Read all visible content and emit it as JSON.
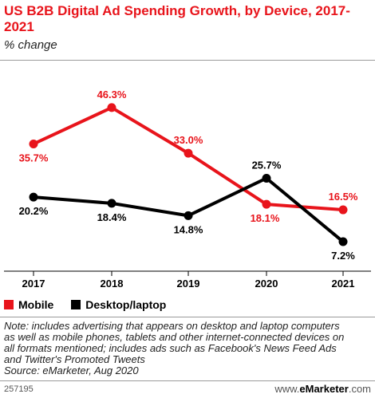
{
  "header": {
    "title": "US B2B Digital Ad Spending Growth, by Device, 2017-2021",
    "subtitle": "% change"
  },
  "chart_data": {
    "type": "line",
    "x": [
      "2017",
      "2018",
      "2019",
      "2020",
      "2021"
    ],
    "ylim": [
      0,
      50
    ],
    "grid": false,
    "legend_position": "bottom-left",
    "series": [
      {
        "name": "Mobile",
        "color": "#e8141b",
        "values": [
          35.7,
          46.3,
          33.0,
          18.1,
          16.5
        ],
        "labels": [
          "35.7%",
          "46.3%",
          "33.0%",
          "18.1%",
          "16.5%"
        ]
      },
      {
        "name": "Desktop/laptop",
        "color": "#000000",
        "values": [
          20.2,
          18.4,
          14.8,
          25.7,
          7.2
        ],
        "labels": [
          "20.2%",
          "18.4%",
          "14.8%",
          "25.7%",
          "7.2%"
        ]
      }
    ]
  },
  "legend": {
    "mobile": "Mobile",
    "desktop": "Desktop/laptop"
  },
  "notes": {
    "line1": "Note: includes advertising that appears on desktop and laptop computers",
    "line2": "as well as mobile phones, tablets and other internet-connected devices on",
    "line3": "all formats mentioned; includes ads such as Facebook's News Feed Ads",
    "line4": "and Twitter's Promoted Tweets",
    "source": "Source: eMarketer, Aug 2020"
  },
  "footer": {
    "chart_id": "257195",
    "brand_prefix": "www.",
    "brand_name": "eMarketer",
    "brand_suffix": ".com"
  }
}
